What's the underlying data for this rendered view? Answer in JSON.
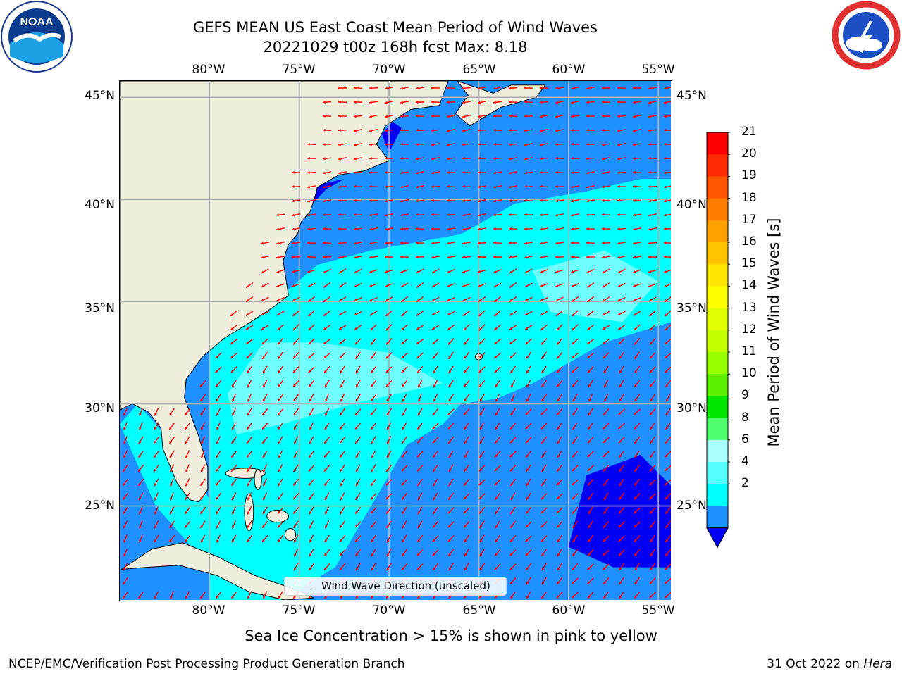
{
  "title": {
    "line1": "GEFS MEAN US East Coast Mean Period of Wind Waves",
    "line2": "20221029 t00z 168h fcst   Max: 8.18"
  },
  "map": {
    "lon_range": [
      -85,
      -54.3
    ],
    "lat_range": [
      20.4,
      45.8
    ],
    "lon_ticks": [
      "80°W",
      "75°W",
      "70°W",
      "65°W",
      "60°W",
      "55°W"
    ],
    "lat_ticks": [
      "45°N",
      "40°N",
      "35°N",
      "30°N",
      "25°N"
    ],
    "colors": {
      "land": "#efeedd",
      "ocean_2_4": "#1e90ff",
      "ocean_4_6": "#00ffff",
      "ocean_6_8": "#84ffff",
      "ocean_under_2": "#0000f4",
      "arrows": "#ff0000",
      "grid": "#b0b0b0",
      "coast": "#000000"
    },
    "legend": "Wind Wave Direction (unscaled)"
  },
  "colorbar": {
    "label": "Mean Period of Wind Waves [s]",
    "ticks": [
      "21",
      "20",
      "19",
      "18",
      "17",
      "16",
      "15",
      "14",
      "13",
      "12",
      "11",
      "10",
      "9",
      "8",
      "6",
      "4",
      "2"
    ],
    "colors": [
      "#ff0000",
      "#ff2a00",
      "#ff5500",
      "#ff7d00",
      "#ffa000",
      "#ffc300",
      "#ffe600",
      "#ffff00",
      "#e1ff00",
      "#c3ff00",
      "#96ff00",
      "#5af000",
      "#00e600",
      "#50ff6e",
      "#aaffff",
      "#55ffff",
      "#00ffff",
      "#1e90ff"
    ],
    "extend_color": "#0000f4"
  },
  "subtitle": "Sea Ice Concentration > 15% is shown in pink to yellow",
  "footer": {
    "left": "NCEP/EMC/Verification Post Processing Product Generation Branch",
    "right_date": "31 Oct 2022 on ",
    "right_machine": "Hera"
  },
  "logos": {
    "noaa": "NOAA",
    "nws": "NATIONAL WEATHER SERVICE"
  }
}
